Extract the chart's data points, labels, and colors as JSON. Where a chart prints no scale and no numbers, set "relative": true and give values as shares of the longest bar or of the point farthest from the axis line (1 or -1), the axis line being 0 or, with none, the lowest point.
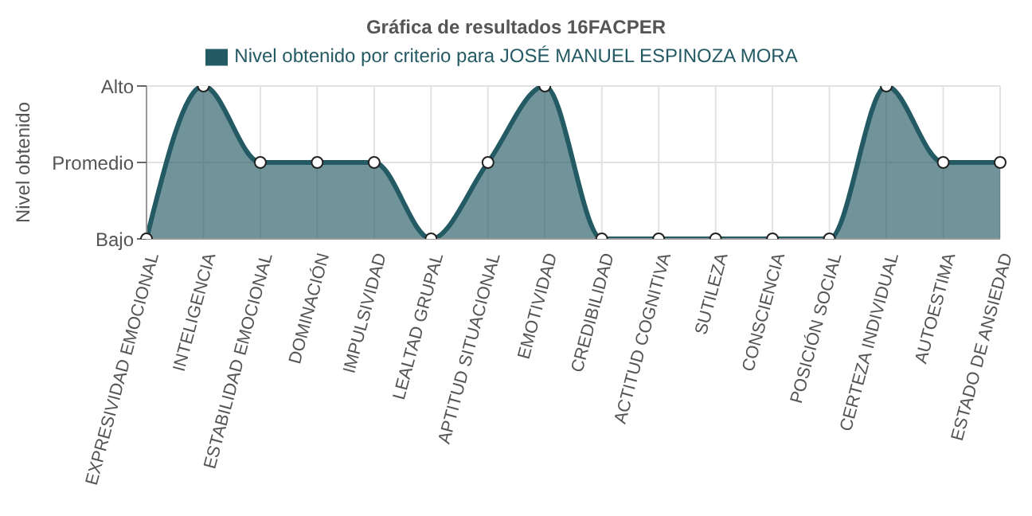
{
  "chart_data": {
    "type": "area",
    "title": "Gráfica de resultados 16FACPER",
    "ylabel": "Nivel obtenido",
    "categories": [
      "EXPRESIVIDAD EMOCIONAL",
      "INTELIGENCIA",
      "ESTABILIDAD EMOCIONAL",
      "DOMINACIÓN",
      "IMPULSIVIDAD",
      "LEALTAD GRUPAL",
      "APTITUD SITUACIONAL",
      "EMOTIVIDAD",
      "CREDIBILIDAD",
      "ACTITUD COGNITIVA",
      "SUTILEZA",
      "CONSCIENCIA",
      "POSICIÓN SOCIAL",
      "CERTEZA INDIVIDUAL",
      "AUTOESTIMA",
      "ESTADO DE ANSIEDAD"
    ],
    "series": [
      {
        "name": "Nivel obtenido por criterio para  JOSÉ MANUEL ESPINOZA MORA",
        "color": "#245a63",
        "values": [
          0,
          1,
          0.5,
          0.5,
          0.5,
          0,
          0.5,
          1,
          0,
          0,
          0,
          0,
          0,
          1,
          0.5,
          0.5
        ]
      }
    ],
    "relative": true,
    "y_categories": [
      "Alto",
      "Promedio",
      "Bajo"
    ],
    "grid": true,
    "legend": "top",
    "marker": "circle"
  }
}
